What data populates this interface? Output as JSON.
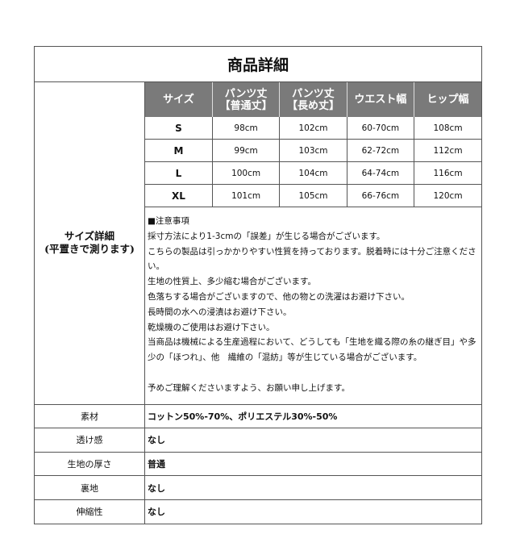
{
  "title": "商品詳細",
  "size_label": [
    "サイズ詳細",
    "(平置きで測ります)"
  ],
  "size_table": {
    "headers": [
      [
        "サイズ",
        ""
      ],
      [
        "パンツ丈",
        "【普通丈】"
      ],
      [
        "パンツ丈",
        "【長め丈】"
      ],
      [
        "ウエスト幅",
        ""
      ],
      [
        "ヒップ幅",
        ""
      ]
    ],
    "rows": [
      [
        "S",
        "98cm",
        "102cm",
        "60-70cm",
        "108cm"
      ],
      [
        "M",
        "99cm",
        "103cm",
        "62-72cm",
        "112cm"
      ],
      [
        "L",
        "100cm",
        "104cm",
        "64-74cm",
        "116cm"
      ],
      [
        "XL",
        "101cm",
        "105cm",
        "66-76cm",
        "120cm"
      ]
    ]
  },
  "notes": [
    "■注意事項",
    "採寸方法により1-3cmの「誤差」が生じる場合がございます。",
    "こちらの製品は引っかかりやすい性質を持っております。脱着時には十分ご注意ください。",
    "生地の性質上、多少縮む場合がございます。",
    "色落ちする場合がございますので、他の物との洗濯はお避け下さい。",
    "長時間の水への浸漬はお避け下さい。",
    "乾燥機のご使用はお避け下さい。",
    "当商品は機械による生産過程において、どうしても「生地を織る際の糸の継ぎ目」や多少の「ほつれ」、他　繊維の「混紡」等が生じている場合がございます。",
    "",
    "予めご理解くださいますよう、お願い申し上げます。"
  ],
  "attributes": [
    {
      "label": "素材",
      "value": "コットン50%-70%、ポリエステル30%-50%"
    },
    {
      "label": "透け感",
      "value": "なし"
    },
    {
      "label": "生地の厚さ",
      "value": "普通"
    },
    {
      "label": "裏地",
      "value": "なし"
    },
    {
      "label": "伸縮性",
      "value": "なし"
    }
  ],
  "colors": {
    "header_bg": "#7a7a7a",
    "border": "#555555"
  }
}
